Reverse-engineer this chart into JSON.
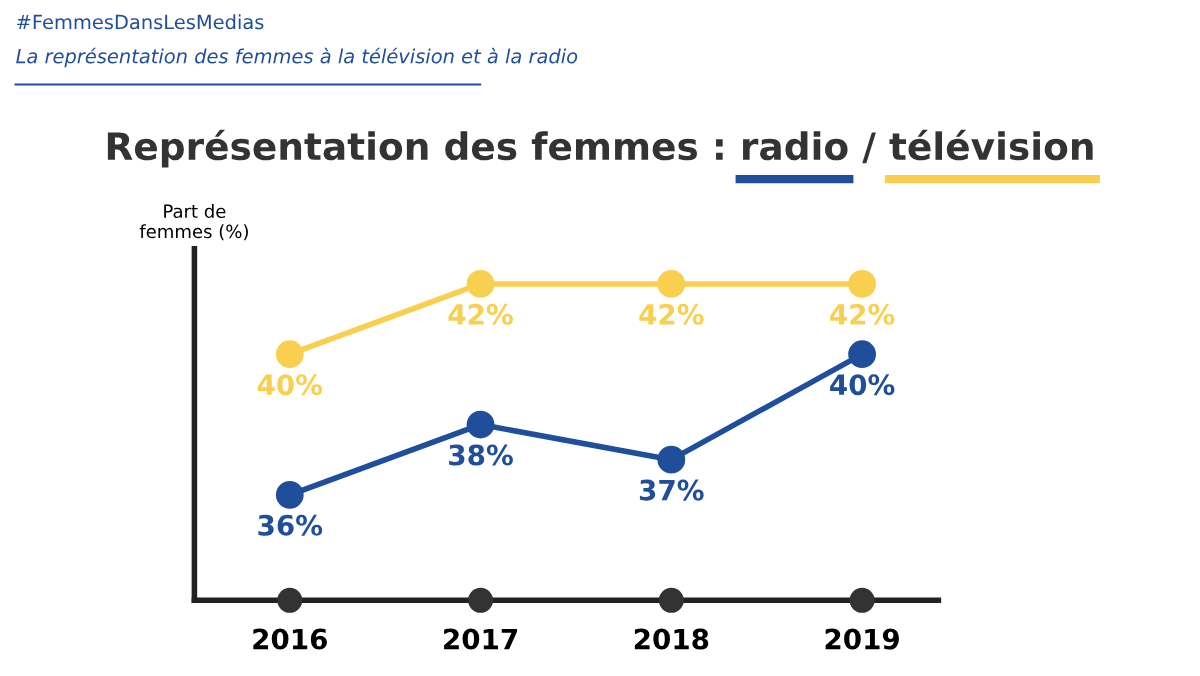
{
  "chart_data": {
    "type": "line",
    "title": "Représentation des femmes : radio / télévision",
    "ylabel": "Part de\nfemmes (%)",
    "annotations": [
      "#FemmesDansLesMedias",
      "La représentation des femmes à la télévision et à la radio"
    ],
    "categories": [
      "2016",
      "2017",
      "2018",
      "2019"
    ],
    "series": [
      {
        "color": "#1f4e9b",
        "values": [
          36,
          38,
          37,
          40
        ],
        "value_labels": [
          "36%",
          "38%",
          "37%",
          "40%"
        ]
      },
      {
        "color": "#f9cf4f",
        "values": [
          40,
          42,
          42,
          42
        ],
        "value_labels": [
          "40%",
          "42%",
          "42%",
          "42%"
        ]
      }
    ],
    "ylim": [
      33,
      43
    ],
    "marker": "circle",
    "line_style": "solid",
    "grid": false
  }
}
